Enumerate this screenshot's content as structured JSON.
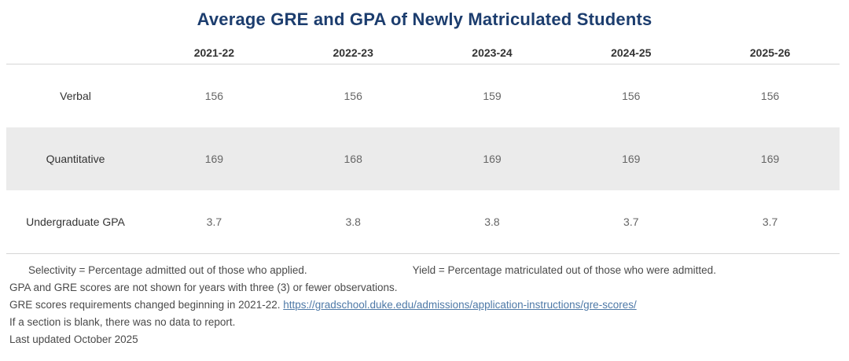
{
  "title": "Average GRE and GPA of Newly Matriculated Students",
  "table": {
    "columns": [
      "2021-22",
      "2022-23",
      "2023-24",
      "2024-25",
      "2025-26"
    ],
    "rows": [
      {
        "label": "Verbal",
        "values": [
          "156",
          "156",
          "159",
          "156",
          "156"
        ]
      },
      {
        "label": "Quantitative",
        "values": [
          "169",
          "168",
          "169",
          "169",
          "169"
        ]
      },
      {
        "label": "Undergraduate GPA",
        "values": [
          "3.7",
          "3.8",
          "3.8",
          "3.7",
          "3.7"
        ]
      }
    ]
  },
  "footnotes": {
    "selectivity_def": "Selectivity = Percentage admitted out of those who applied.",
    "yield_def": "Yield = Percentage matriculated out of those who were admitted.",
    "observations_note": "GPA and GRE scores are not shown for years with three (3) or fewer observations.",
    "gre_change_note": "GRE scores requirements changed beginning in 2021-22. ",
    "gre_link": "https://gradschool.duke.edu/admissions/application-instructions/gre-scores/",
    "blank_note": "If a section is blank, there was no data to report.",
    "last_updated": "Last updated October 2025"
  },
  "colors": {
    "title": "#1c3d6e",
    "link": "#4e79a7",
    "shaded_row": "#ebebeb"
  },
  "chart_data": {
    "type": "table",
    "title": "Average GRE and GPA of Newly Matriculated Students",
    "categories": [
      "2021-22",
      "2022-23",
      "2023-24",
      "2024-25",
      "2025-26"
    ],
    "series": [
      {
        "name": "Verbal",
        "values": [
          156,
          156,
          159,
          156,
          156
        ]
      },
      {
        "name": "Quantitative",
        "values": [
          169,
          168,
          169,
          169,
          169
        ]
      },
      {
        "name": "Undergraduate GPA",
        "values": [
          3.7,
          3.8,
          3.8,
          3.7,
          3.7
        ]
      }
    ],
    "layout": {
      "shaded_rows": [
        "Quantitative"
      ],
      "row_labels_position": "left",
      "grid": "horizontal-separators"
    }
  }
}
